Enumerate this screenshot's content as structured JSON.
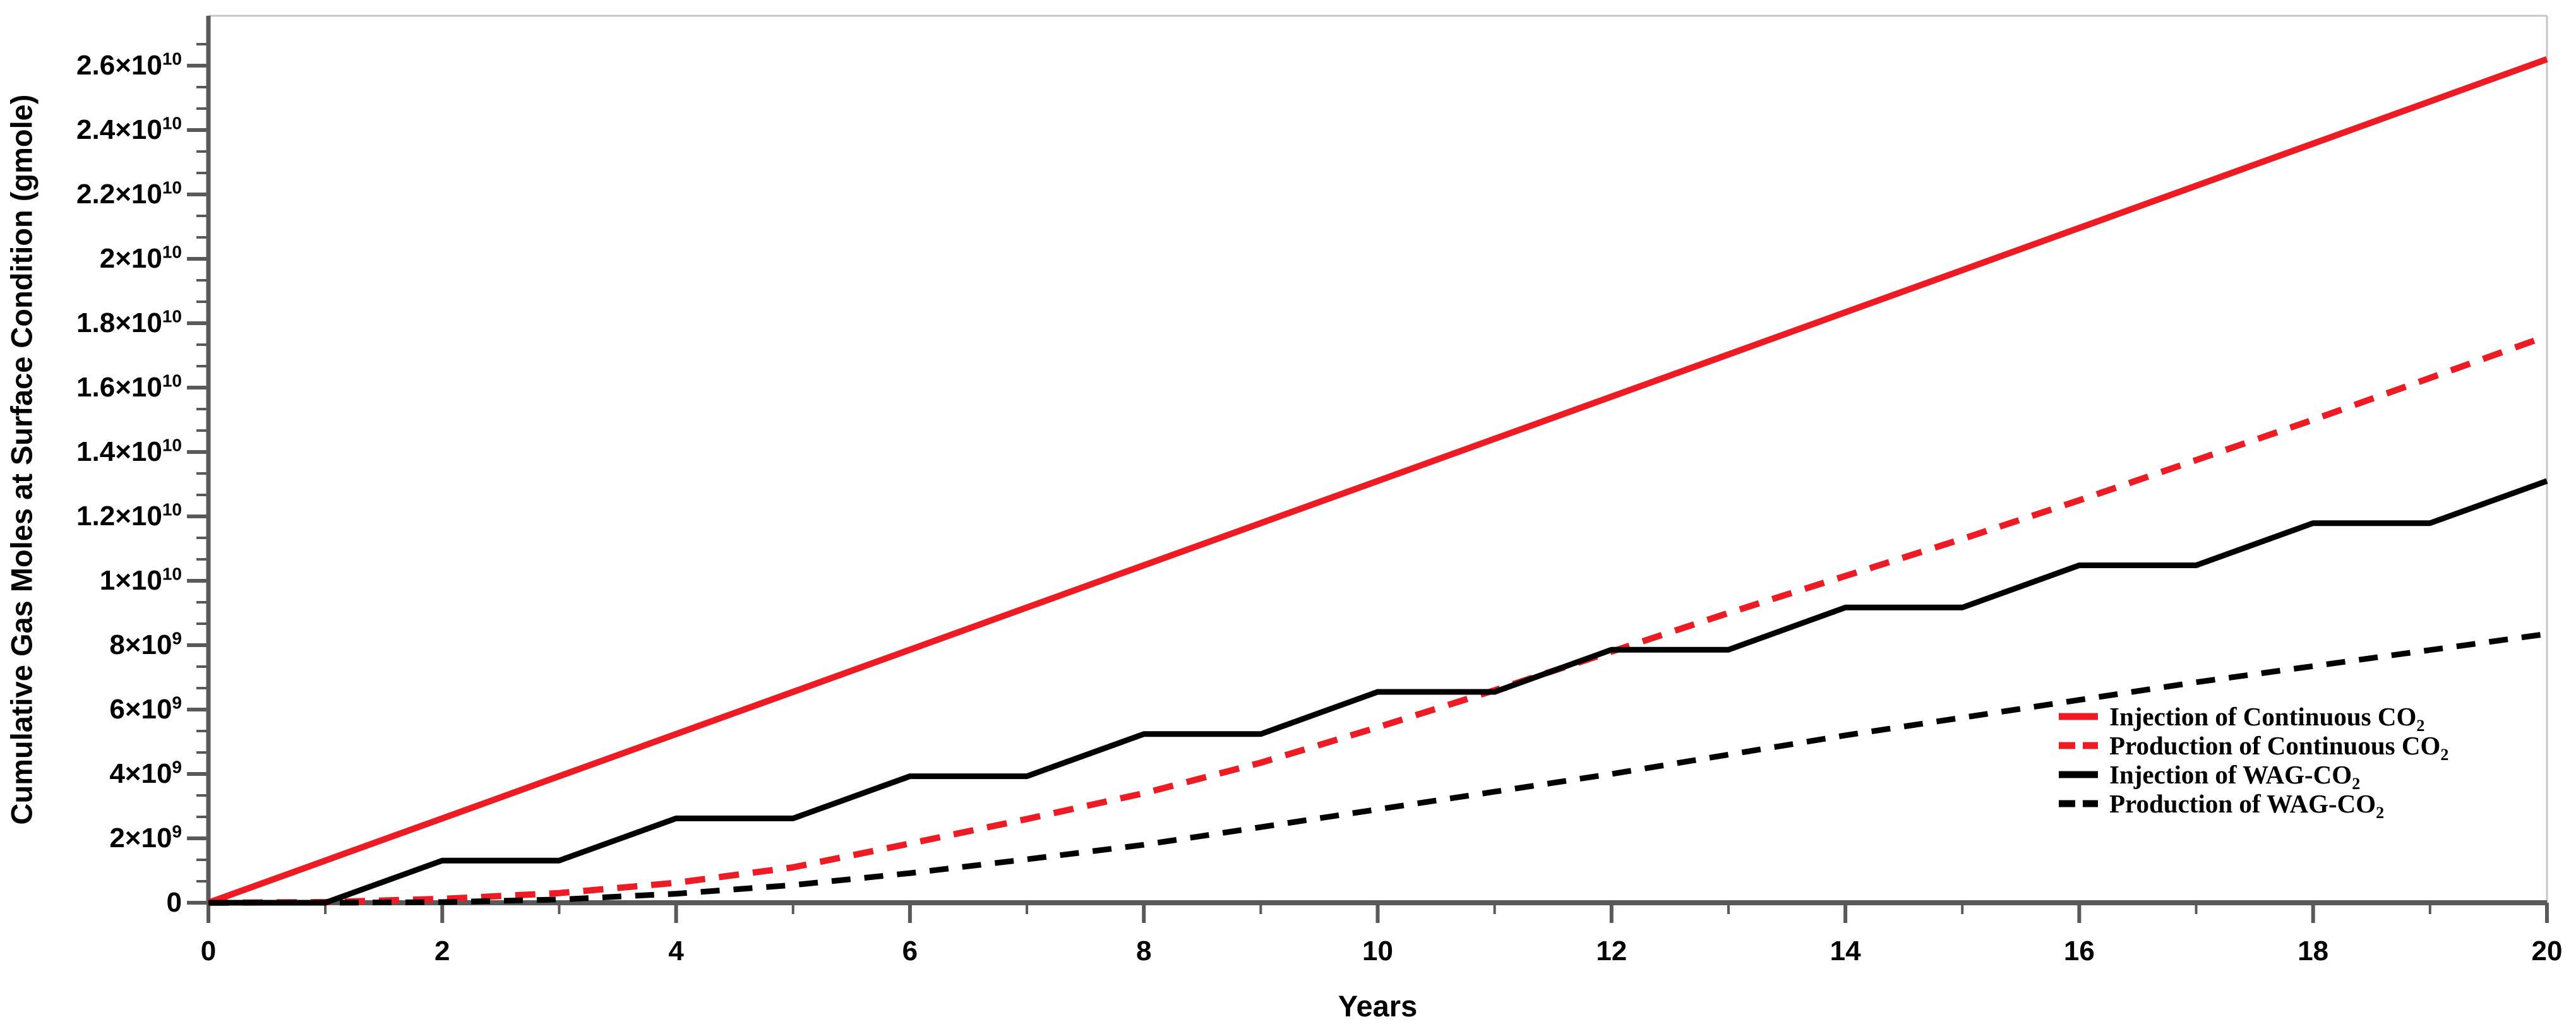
{
  "figure": {
    "title": "",
    "x_axis_title": "Years",
    "y_axis_title": "Cumulative Gas Moles at Surface Condition (gmole)"
  },
  "axes": {
    "x_tick_labels": [
      "0",
      "2",
      "4",
      "6",
      "8",
      "10",
      "12",
      "14",
      "16",
      "18",
      "20"
    ],
    "y_tick_labels": [
      {
        "mantissa": "0",
        "exp": ""
      },
      {
        "mantissa": "2×10",
        "exp": "9"
      },
      {
        "mantissa": "4×10",
        "exp": "9"
      },
      {
        "mantissa": "6×10",
        "exp": "9"
      },
      {
        "mantissa": "8×10",
        "exp": "9"
      },
      {
        "mantissa": "1×10",
        "exp": "10"
      },
      {
        "mantissa": "1.2×10",
        "exp": "10"
      },
      {
        "mantissa": "1.4×10",
        "exp": "10"
      },
      {
        "mantissa": "1.6×10",
        "exp": "10"
      },
      {
        "mantissa": "1.8×10",
        "exp": "10"
      },
      {
        "mantissa": "2×10",
        "exp": "10"
      },
      {
        "mantissa": "2.2×10",
        "exp": "10"
      },
      {
        "mantissa": "2.4×10",
        "exp": "10"
      },
      {
        "mantissa": "2.6×10",
        "exp": "10"
      }
    ]
  },
  "legend": {
    "items": [
      {
        "label": "Injection of Continuous CO",
        "sub": "2",
        "color": "#ed1c24",
        "dashed": false
      },
      {
        "label": "Production of Continuous CO",
        "sub": "2",
        "color": "#ed1c24",
        "dashed": true
      },
      {
        "label": "Injection of WAG-CO",
        "sub": "2",
        "color": "#000000",
        "dashed": false
      },
      {
        "label": "Production of WAG-CO",
        "sub": "2",
        "color": "#000000",
        "dashed": true
      }
    ]
  },
  "colors": {
    "red": "#ed1c24",
    "black": "#000000",
    "axis": "#595959",
    "border": "#c6c6c6"
  },
  "chart_data": {
    "type": "line",
    "title": "",
    "xlabel": "Years",
    "ylabel": "Cumulative Gas Moles at Surface Condition (gmole)",
    "xlim": [
      0,
      20
    ],
    "ylim": [
      0,
      27550000000
    ],
    "x_major_tick_step": 2,
    "x_minor_tick_step": 1,
    "y_major_tick_step": 2000000000,
    "y_minor_per_major": 2,
    "grid": false,
    "legend_position": "inside lower right",
    "x": [
      0,
      1,
      2,
      3,
      4,
      5,
      6,
      7,
      8,
      9,
      10,
      11,
      12,
      13,
      14,
      15,
      16,
      17,
      18,
      19,
      20
    ],
    "series": [
      {
        "name": "Injection of Continuous CO2",
        "color": "#ed1c24",
        "style": "solid",
        "values": [
          0,
          1310000000.0,
          2620000000.0,
          3930000000.0,
          5240000000.0,
          6550000000.0,
          7860000000.0,
          9170000000.0,
          10480000000.0,
          11790000000.0,
          13100000000.0,
          14410000000.0,
          15720000000.0,
          17030000000.0,
          18340000000.0,
          19650000000.0,
          20960000000.0,
          22270000000.0,
          23580000000.0,
          24890000000.0,
          26200000000.0
        ]
      },
      {
        "name": "Production of Continuous CO2",
        "color": "#ed1c24",
        "style": "dashed",
        "values": [
          0,
          20000000.0,
          120000000.0,
          300000000.0,
          620000000.0,
          1100000000.0,
          1840000000.0,
          2600000000.0,
          3400000000.0,
          4350000000.0,
          5450000000.0,
          6600000000.0,
          7800000000.0,
          9000000000.0,
          10150000000.0,
          11300000000.0,
          12500000000.0,
          13750000000.0,
          15000000000.0,
          16300000000.0,
          17600000000.0
        ]
      },
      {
        "name": "Injection of WAG-CO2",
        "color": "#000000",
        "style": "solid",
        "values": [
          0,
          0,
          1310000000.0,
          1310000000.0,
          2620000000.0,
          2620000000.0,
          3930000000.0,
          3930000000.0,
          5240000000.0,
          5240000000.0,
          6550000000.0,
          6550000000.0,
          7860000000.0,
          7860000000.0,
          9170000000.0,
          9170000000.0,
          10480000000.0,
          10480000000.0,
          11790000000.0,
          11790000000.0,
          13100000000.0
        ]
      },
      {
        "name": "Production of WAG-CO2",
        "color": "#000000",
        "style": "dashed",
        "values": [
          0,
          0,
          20000000.0,
          100000000.0,
          280000000.0,
          550000000.0,
          920000000.0,
          1350000000.0,
          1800000000.0,
          2350000000.0,
          2900000000.0,
          3450000000.0,
          4000000000.0,
          4600000000.0,
          5200000000.0,
          5750000000.0,
          6300000000.0,
          6850000000.0,
          7350000000.0,
          7850000000.0,
          8350000000.0
        ]
      }
    ]
  }
}
